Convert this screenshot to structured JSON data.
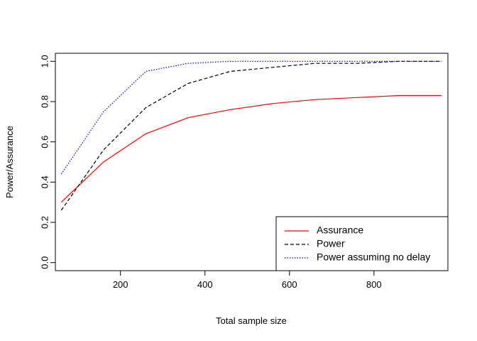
{
  "chart_data": {
    "type": "line",
    "title": "",
    "xlabel": "Total sample size",
    "ylabel": "Power/Assurance",
    "xlim": [
      46,
      975
    ],
    "ylim": [
      -0.04,
      1.04
    ],
    "x_ticks": [
      200,
      400,
      600,
      800
    ],
    "y_ticks": [
      0.0,
      0.2,
      0.4,
      0.6,
      0.8,
      1.0
    ],
    "y_tick_labels": [
      "0.0",
      "0.2",
      "0.4",
      "0.6",
      "0.8",
      "1.0"
    ],
    "grid": false,
    "legend_position": "bottom-right",
    "series": [
      {
        "name": "Assurance",
        "color": "#ff0000",
        "dash": "solid",
        "x": [
          60,
          160,
          260,
          360,
          460,
          560,
          660,
          760,
          860,
          960
        ],
        "y": [
          0.3,
          0.5,
          0.64,
          0.72,
          0.76,
          0.79,
          0.81,
          0.82,
          0.83,
          0.83
        ]
      },
      {
        "name": "Power",
        "color": "#000000",
        "dash": "dashed",
        "x": [
          60,
          160,
          260,
          360,
          460,
          560,
          660,
          760,
          860,
          960
        ],
        "y": [
          0.26,
          0.56,
          0.77,
          0.89,
          0.95,
          0.97,
          0.99,
          0.99,
          1.0,
          1.0
        ]
      },
      {
        "name": "Power assuming no delay",
        "color": "#0000ff",
        "dash": "dotted",
        "x": [
          60,
          160,
          260,
          360,
          460,
          560,
          660,
          760,
          860,
          960
        ],
        "y": [
          0.44,
          0.75,
          0.95,
          0.99,
          1.0,
          1.0,
          1.0,
          1.0,
          1.0,
          1.0
        ]
      }
    ]
  }
}
